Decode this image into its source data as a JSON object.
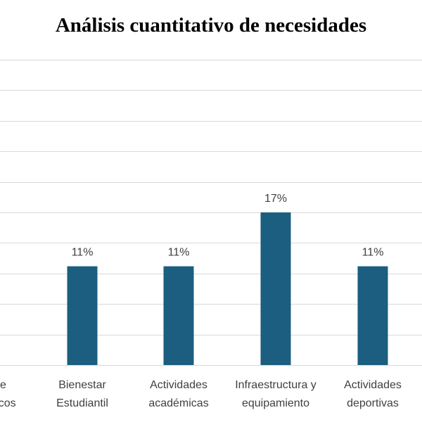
{
  "chart_data": {
    "type": "bar",
    "title": "Análisis cuantitativo de necesidades",
    "categories": [
      [
        "de",
        "físicos"
      ],
      [
        "Bienestar",
        "Estudiantil"
      ],
      [
        "Actividades",
        "académicas"
      ],
      [
        "Infraestructura y",
        "equipamiento"
      ],
      [
        "Actividades",
        "deportivas"
      ]
    ],
    "values": [
      0,
      11,
      11,
      17,
      11
    ],
    "data_labels": [
      "",
      "11%",
      "11%",
      "17%",
      "11%"
    ],
    "ylim": [
      0,
      34
    ],
    "grid": true,
    "bar_color": "#1b5e80",
    "legend": "none"
  }
}
